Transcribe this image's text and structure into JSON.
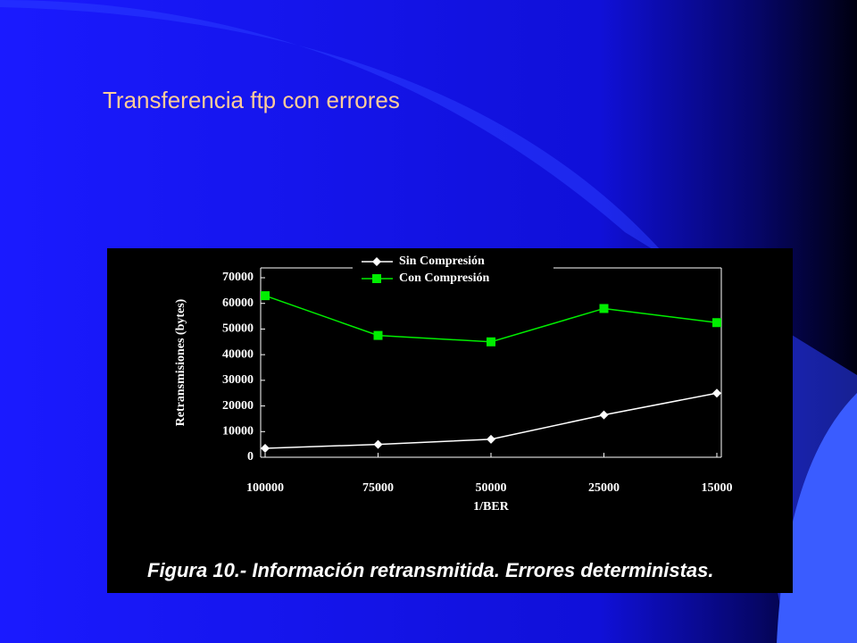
{
  "slide_title": "Transferencia ftp con errores",
  "chart_data": {
    "type": "line",
    "xlabel": "1/BER",
    "ylabel": "Retransmisiones (bytes)",
    "caption": "Figura 10.- Información retransmitida. Errores deterministas.",
    "categories": [
      "100000",
      "75000",
      "50000",
      "25000",
      "15000"
    ],
    "series": [
      {
        "name": "Sin Compresión",
        "color": "#ffffff",
        "marker": "diamond",
        "values": [
          3500,
          5000,
          7000,
          16500,
          25000
        ]
      },
      {
        "name": "Con Compresión",
        "color": "#00ee00",
        "marker": "square",
        "values": [
          63000,
          47500,
          45000,
          58000,
          52500
        ]
      }
    ],
    "ylim": [
      0,
      70000
    ],
    "yticks": [
      0,
      10000,
      20000,
      30000,
      40000,
      50000,
      60000,
      70000
    ],
    "legend": "top"
  }
}
